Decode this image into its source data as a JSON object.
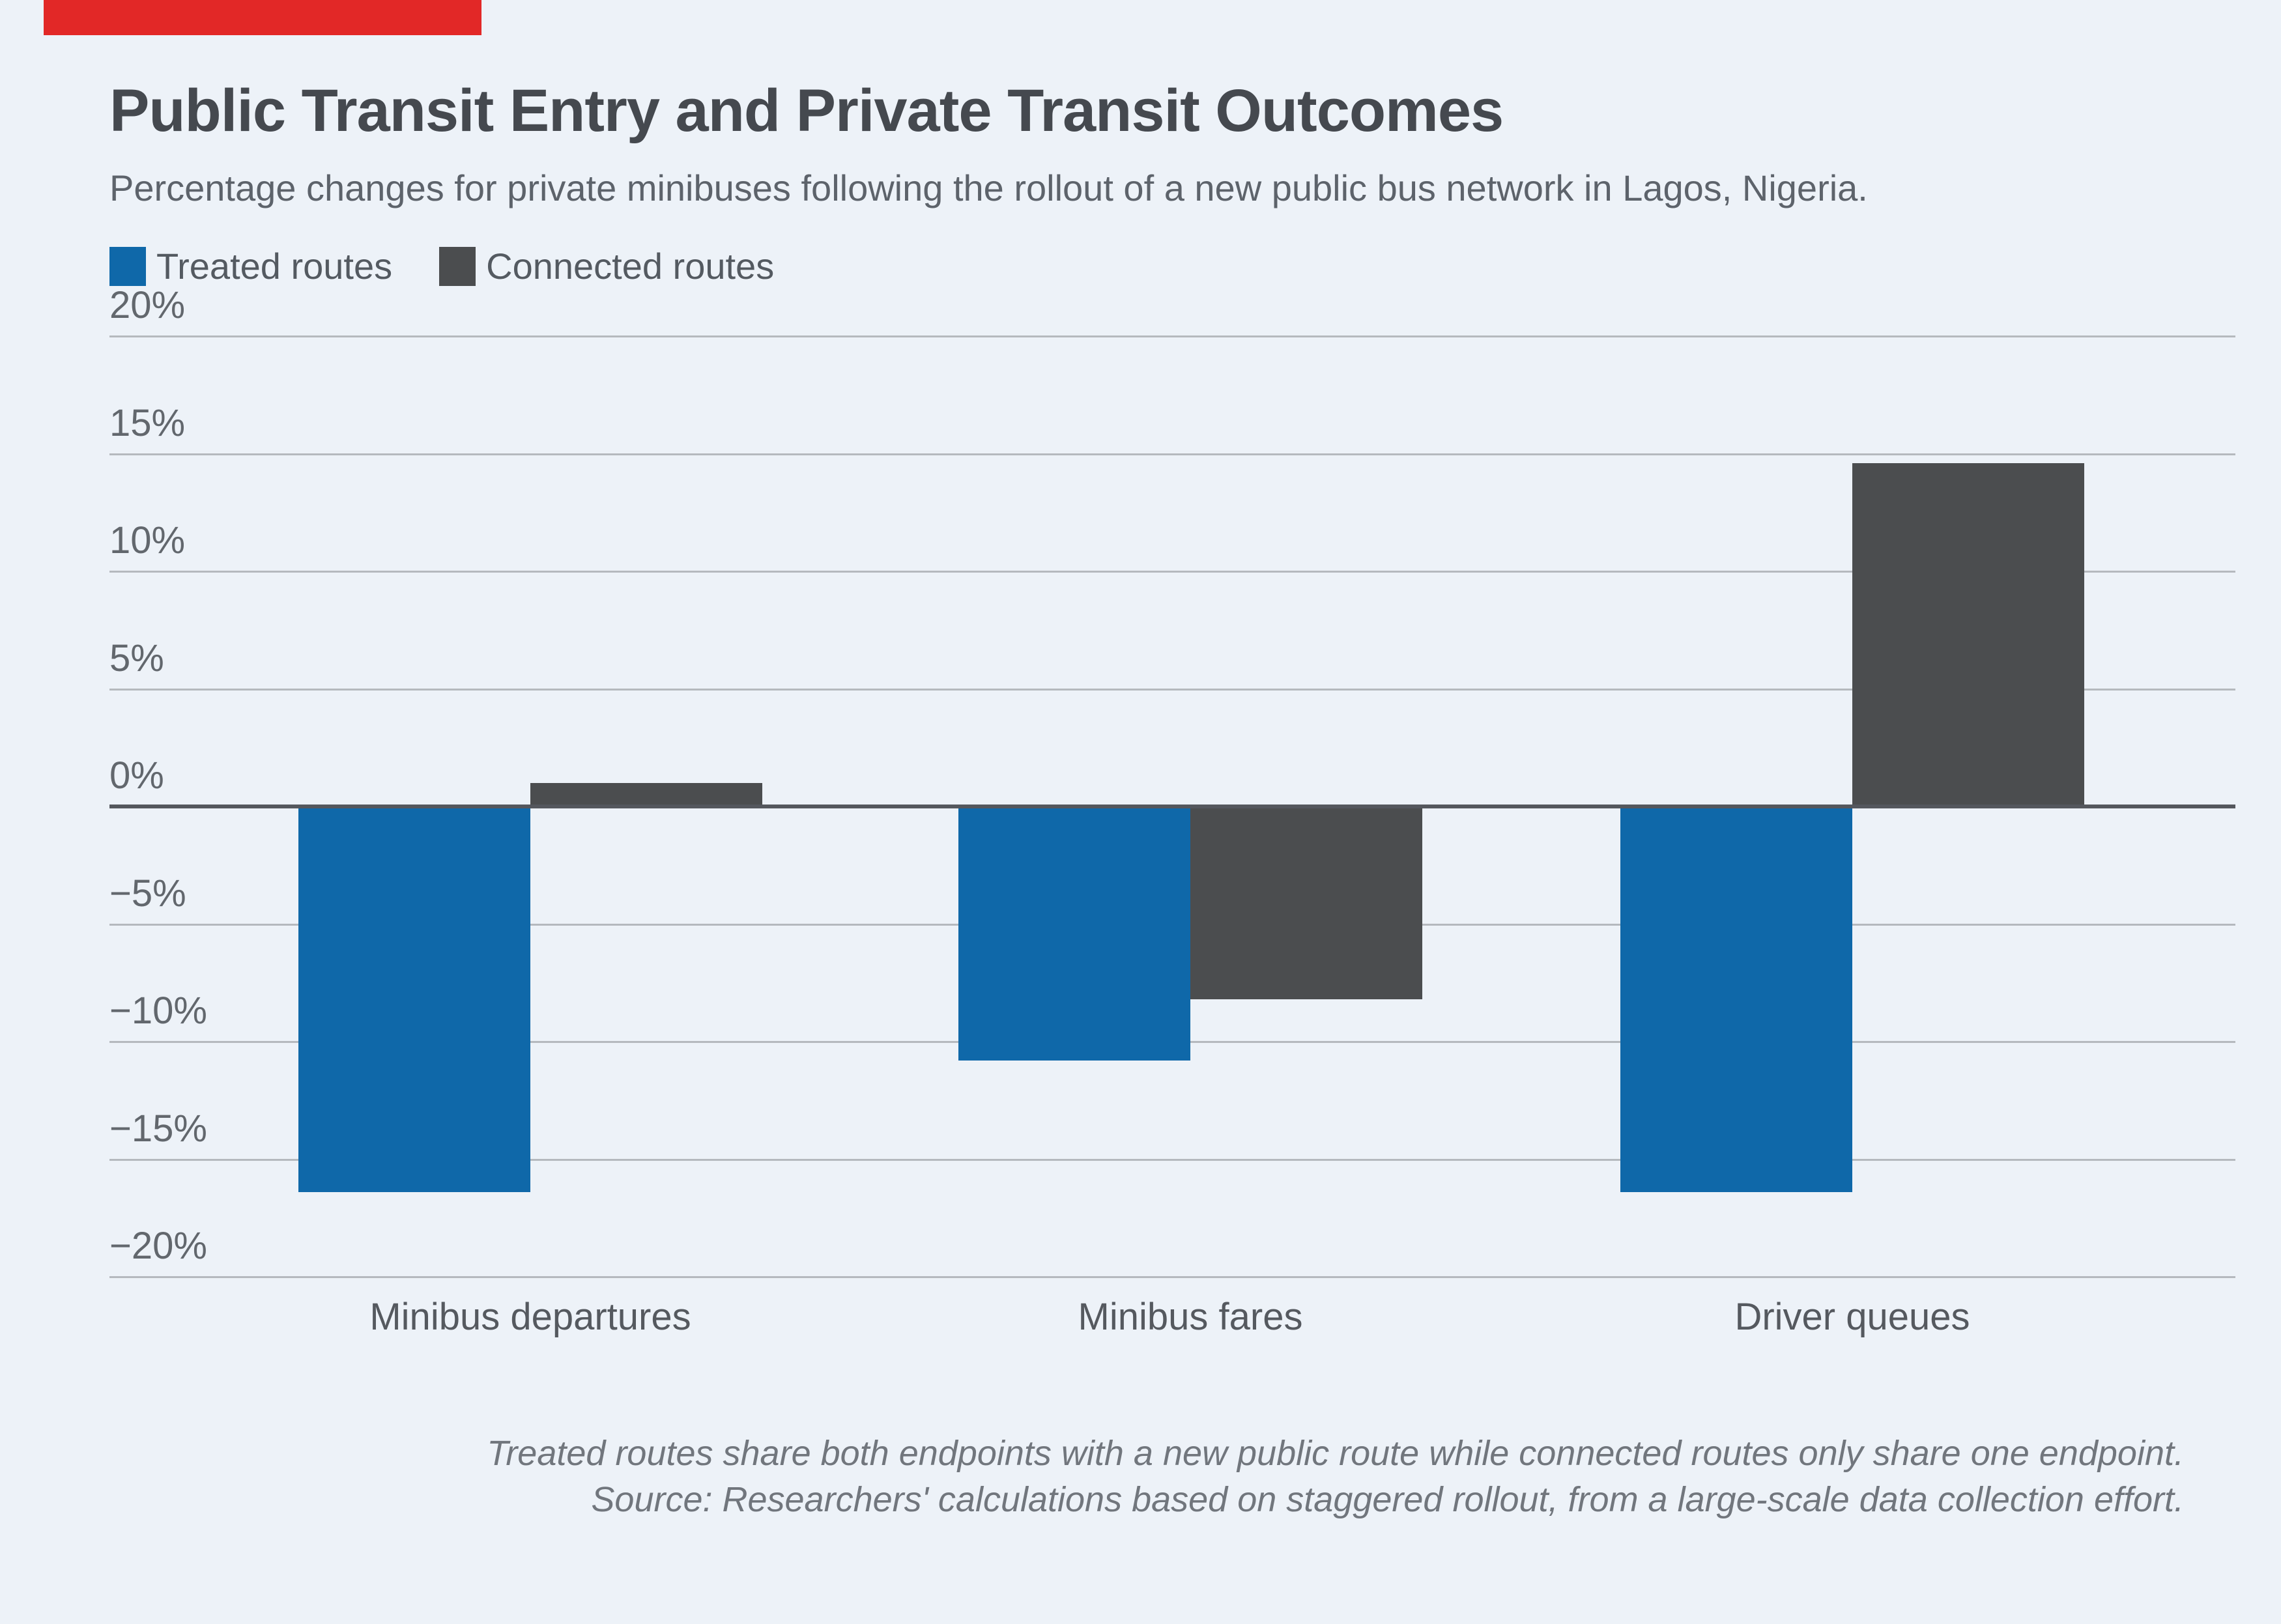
{
  "page": {
    "background_color": "#edf2f8",
    "accent_bar_color": "#e22827"
  },
  "header": {
    "title": "Public Transit Entry and Private Transit Outcomes",
    "subtitle": "Percentage changes for private minibuses following the rollout of a new public bus network in Lagos, Nigeria."
  },
  "legend": {
    "items": [
      {
        "label": "Treated routes",
        "color": "#0f68a9"
      },
      {
        "label": "Connected routes",
        "color": "#4b4d4f"
      }
    ]
  },
  "chart_data": {
    "type": "bar",
    "title": "Public Transit Entry and Private Transit Outcomes",
    "subtitle": "Percentage changes for private minibuses following the rollout of a new public bus network in Lagos, Nigeria.",
    "categories": [
      "Minibus departures",
      "Minibus fares",
      "Driver queues"
    ],
    "series": [
      {
        "name": "Treated routes",
        "color": "#0f68a9",
        "values": [
          -16.4,
          -10.8,
          -16.4
        ]
      },
      {
        "name": "Connected routes",
        "color": "#4b4d4f",
        "values": [
          1.0,
          -8.2,
          14.6
        ]
      }
    ],
    "unit": "percent",
    "ylim": [
      -20,
      20
    ],
    "yticks": [
      {
        "value": 20,
        "label": "20%"
      },
      {
        "value": 15,
        "label": "15%"
      },
      {
        "value": 10,
        "label": "10%"
      },
      {
        "value": 5,
        "label": "5%"
      },
      {
        "value": 0,
        "label": "0%"
      },
      {
        "value": -5,
        "label": "−5%"
      },
      {
        "value": -10,
        "label": "−10%"
      },
      {
        "value": -15,
        "label": "−15%"
      },
      {
        "value": -20,
        "label": "−20%"
      }
    ],
    "grid": true,
    "legend_position": "top-left"
  },
  "footer": {
    "line1": "Treated routes share both endpoints with a new public route while connected routes only share one endpoint.",
    "line2": "Source: Researchers' calculations based on staggered rollout, from a large-scale data collection effort."
  }
}
